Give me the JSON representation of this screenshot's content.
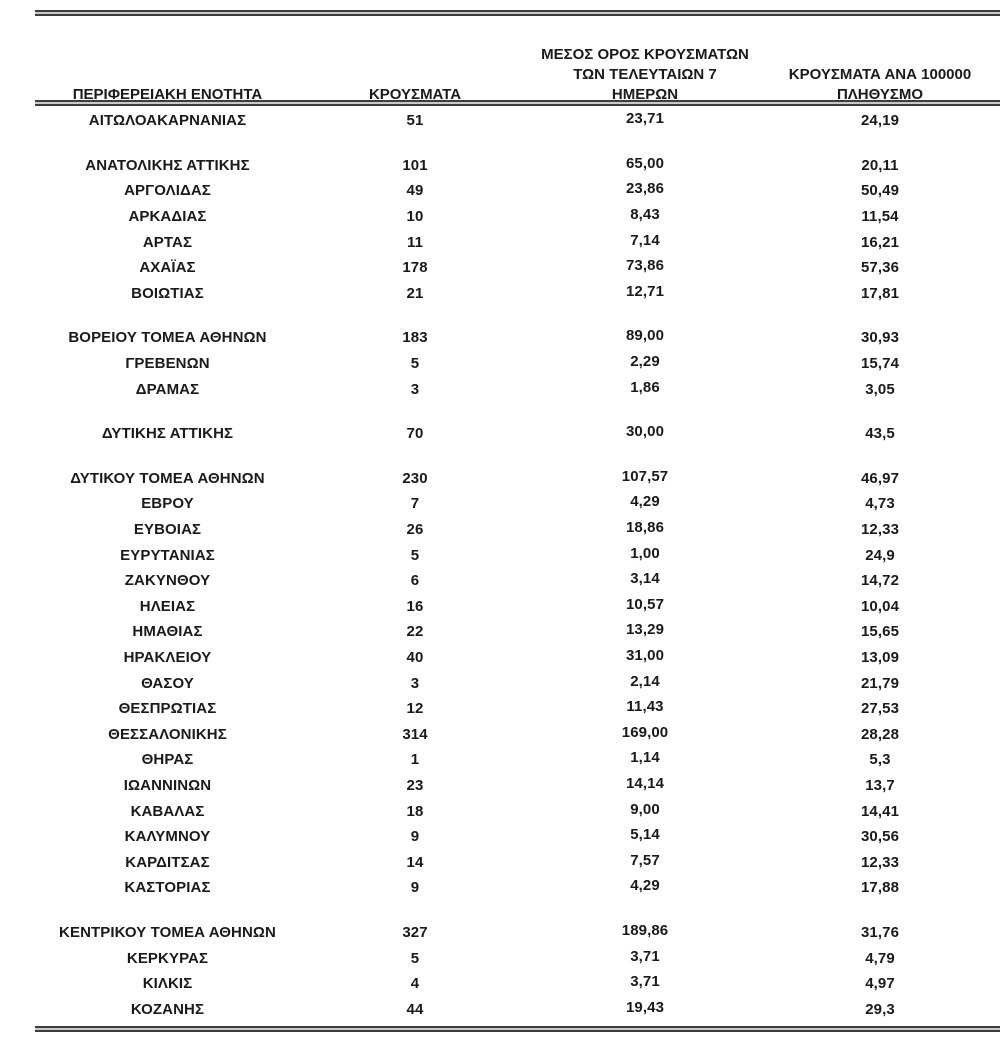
{
  "table": {
    "columns": [
      {
        "id": "region",
        "lines": [
          "ΠΕΡΙΦΕΡΕΙΑΚΗ ΕΝΟΤΗΤΑ"
        ]
      },
      {
        "id": "cases",
        "lines": [
          "ΚΡΟΥΣΜΑΤΑ"
        ]
      },
      {
        "id": "avg7",
        "lines": [
          "ΜΕΣΟΣ ΟΡΟΣ ΚΡΟΥΣΜΑΤΩΝ",
          "ΤΩΝ ΤΕΛΕΥΤΑΙΩΝ 7",
          "ΗΜΕΡΩΝ"
        ]
      },
      {
        "id": "per100k",
        "lines": [
          "ΚΡΟΥΣΜΑΤΑ ΑΝΑ 100000",
          "ΠΛΗΘΥΣΜΟ"
        ]
      }
    ],
    "rows": [
      {
        "region": "ΑΙΤΩΛΟΑΚΑΡΝΑΝΙΑΣ",
        "cases": "51",
        "avg7": "23,71",
        "per100k": "24,19",
        "gap_after": true
      },
      {
        "region": "ΑΝΑΤΟΛΙΚΗΣ ΑΤΤΙΚΗΣ",
        "cases": "101",
        "avg7": "65,00",
        "per100k": "20,11",
        "gap_after": false
      },
      {
        "region": "ΑΡΓΟΛΙΔΑΣ",
        "cases": "49",
        "avg7": "23,86",
        "per100k": "50,49",
        "gap_after": false
      },
      {
        "region": "ΑΡΚΑΔΙΑΣ",
        "cases": "10",
        "avg7": "8,43",
        "per100k": "11,54",
        "gap_after": false
      },
      {
        "region": "ΑΡΤΑΣ",
        "cases": "11",
        "avg7": "7,14",
        "per100k": "16,21",
        "gap_after": false
      },
      {
        "region": "ΑΧΑΪΑΣ",
        "cases": "178",
        "avg7": "73,86",
        "per100k": "57,36",
        "gap_after": false
      },
      {
        "region": "ΒΟΙΩΤΙΑΣ",
        "cases": "21",
        "avg7": "12,71",
        "per100k": "17,81",
        "gap_after": true
      },
      {
        "region": "ΒΟΡΕΙΟΥ ΤΟΜΕΑ ΑΘΗΝΩΝ",
        "cases": "183",
        "avg7": "89,00",
        "per100k": "30,93",
        "gap_after": false
      },
      {
        "region": "ΓΡΕΒΕΝΩΝ",
        "cases": "5",
        "avg7": "2,29",
        "per100k": "15,74",
        "gap_after": false
      },
      {
        "region": "ΔΡΑΜΑΣ",
        "cases": "3",
        "avg7": "1,86",
        "per100k": "3,05",
        "gap_after": true
      },
      {
        "region": "ΔΥΤΙΚΗΣ ΑΤΤΙΚΗΣ",
        "cases": "70",
        "avg7": "30,00",
        "per100k": "43,5",
        "gap_after": true
      },
      {
        "region": "ΔΥΤΙΚΟΥ ΤΟΜΕΑ ΑΘΗΝΩΝ",
        "cases": "230",
        "avg7": "107,57",
        "per100k": "46,97",
        "gap_after": false
      },
      {
        "region": "ΕΒΡΟΥ",
        "cases": "7",
        "avg7": "4,29",
        "per100k": "4,73",
        "gap_after": false
      },
      {
        "region": "ΕΥΒΟΙΑΣ",
        "cases": "26",
        "avg7": "18,86",
        "per100k": "12,33",
        "gap_after": false
      },
      {
        "region": "ΕΥΡΥΤΑΝΙΑΣ",
        "cases": "5",
        "avg7": "1,00",
        "per100k": "24,9",
        "gap_after": false
      },
      {
        "region": "ΖΑΚΥΝΘΟΥ",
        "cases": "6",
        "avg7": "3,14",
        "per100k": "14,72",
        "gap_after": false
      },
      {
        "region": "ΗΛΕΙΑΣ",
        "cases": "16",
        "avg7": "10,57",
        "per100k": "10,04",
        "gap_after": false
      },
      {
        "region": "ΗΜΑΘΙΑΣ",
        "cases": "22",
        "avg7": "13,29",
        "per100k": "15,65",
        "gap_after": false
      },
      {
        "region": "ΗΡΑΚΛΕΙΟΥ",
        "cases": "40",
        "avg7": "31,00",
        "per100k": "13,09",
        "gap_after": false
      },
      {
        "region": "ΘΑΣΟΥ",
        "cases": "3",
        "avg7": "2,14",
        "per100k": "21,79",
        "gap_after": false
      },
      {
        "region": "ΘΕΣΠΡΩΤΙΑΣ",
        "cases": "12",
        "avg7": "11,43",
        "per100k": "27,53",
        "gap_after": false
      },
      {
        "region": "ΘΕΣΣΑΛΟΝΙΚΗΣ",
        "cases": "314",
        "avg7": "169,00",
        "per100k": "28,28",
        "gap_after": false
      },
      {
        "region": "ΘΗΡΑΣ",
        "cases": "1",
        "avg7": "1,14",
        "per100k": "5,3",
        "gap_after": false
      },
      {
        "region": "ΙΩΑΝΝΙΝΩΝ",
        "cases": "23",
        "avg7": "14,14",
        "per100k": "13,7",
        "gap_after": false
      },
      {
        "region": "ΚΑΒΑΛΑΣ",
        "cases": "18",
        "avg7": "9,00",
        "per100k": "14,41",
        "gap_after": false
      },
      {
        "region": "ΚΑΛΥΜΝΟΥ",
        "cases": "9",
        "avg7": "5,14",
        "per100k": "30,56",
        "gap_after": false
      },
      {
        "region": "ΚΑΡΔΙΤΣΑΣ",
        "cases": "14",
        "avg7": "7,57",
        "per100k": "12,33",
        "gap_after": false
      },
      {
        "region": "ΚΑΣΤΟΡΙΑΣ",
        "cases": "9",
        "avg7": "4,29",
        "per100k": "17,88",
        "gap_after": true
      },
      {
        "region": "ΚΕΝΤΡΙΚΟΥ ΤΟΜΕΑ ΑΘΗΝΩΝ",
        "cases": "327",
        "avg7": "189,86",
        "per100k": "31,76",
        "gap_after": false
      },
      {
        "region": "ΚΕΡΚΥΡΑΣ",
        "cases": "5",
        "avg7": "3,71",
        "per100k": "4,79",
        "gap_after": false
      },
      {
        "region": "ΚΙΛΚΙΣ",
        "cases": "4",
        "avg7": "3,71",
        "per100k": "4,97",
        "gap_after": false
      },
      {
        "region": "ΚΟΖΑΝΗΣ",
        "cases": "44",
        "avg7": "19,43",
        "per100k": "29,3",
        "gap_after": false
      }
    ]
  },
  "colors": {
    "text": "#1a1a1a",
    "rule_dark": "#3d3d3d",
    "rule_light": "#c9c9c9",
    "background": "#ffffff"
  }
}
